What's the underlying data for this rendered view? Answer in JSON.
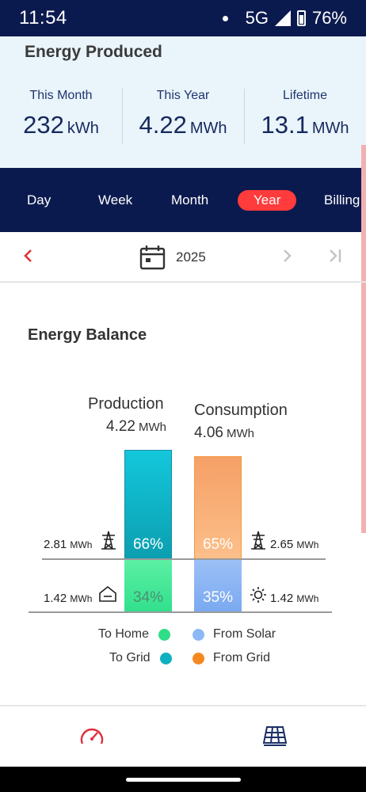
{
  "status_bar": {
    "time": "11:54",
    "network": "5G",
    "battery": "76%"
  },
  "energy_produced": {
    "title": "Energy Produced",
    "stats": [
      {
        "label": "This Month",
        "value": "232",
        "unit": "kWh"
      },
      {
        "label": "This Year",
        "value": "4.22",
        "unit": "MWh"
      },
      {
        "label": "Lifetime",
        "value": "13.1",
        "unit": "MWh"
      }
    ]
  },
  "tabs": [
    "Day",
    "Week",
    "Month",
    "Year",
    "Billing"
  ],
  "active_tab": "Year",
  "date_nav": {
    "label": "2025"
  },
  "energy_balance": {
    "title": "Energy Balance",
    "production": {
      "heading": "Production",
      "total": "4.22",
      "unit": "MWh",
      "top_pct": "66%",
      "bottom_pct": "34%"
    },
    "consumption": {
      "heading": "Consumption",
      "total": "4.06",
      "unit": "MWh",
      "top_pct": "65%",
      "bottom_pct": "35%"
    },
    "left_top": {
      "value": "2.81",
      "unit": "MWh",
      "icon": "grid-tower-icon"
    },
    "left_bottom": {
      "value": "1.42",
      "unit": "MWh",
      "icon": "home-icon"
    },
    "right_top": {
      "value": "2.65",
      "unit": "MWh",
      "icon": "grid-tower-icon"
    },
    "right_bottom": {
      "value": "1.42",
      "unit": "MWh",
      "icon": "sun-icon"
    },
    "legend": [
      {
        "label": "To Home",
        "color": "#2ede86"
      },
      {
        "label": "From Solar",
        "color": "#8cb8f5"
      },
      {
        "label": "To Grid",
        "color": "#0fb0bf"
      },
      {
        "label": "From Grid",
        "color": "#f5891f"
      }
    ]
  },
  "colors": {
    "navy": "#0b1a4e",
    "accent_red": "#ff3b3b",
    "to_grid": "#0fb0bf",
    "to_home": "#2ede86",
    "from_grid": "#f5891f",
    "from_solar": "#8cb8f5"
  },
  "bottom_nav": [
    {
      "icon": "gauge-icon"
    },
    {
      "icon": "solar-panel-icon"
    }
  ]
}
